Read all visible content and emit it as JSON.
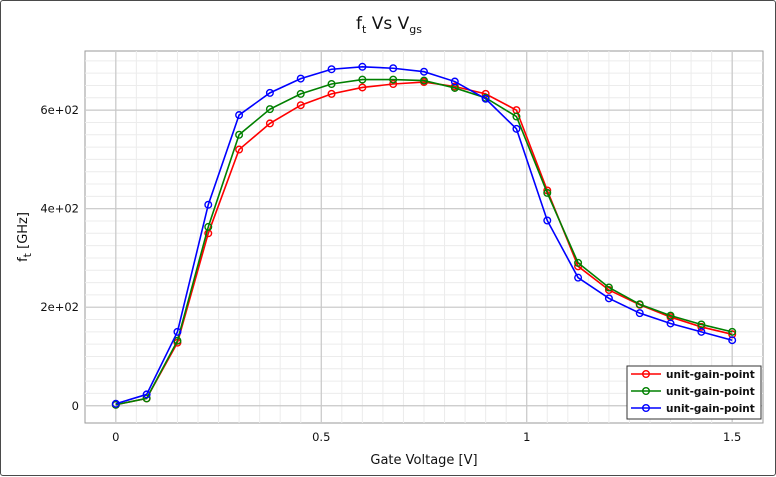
{
  "chart_data": {
    "type": "line",
    "title": {
      "main": "f",
      "main_sub": "t",
      "mid": " Vs V",
      "end_sub": "gs"
    },
    "xlabel": "Gate Voltage [V]",
    "ylabel": {
      "main": "f",
      "sub": "t",
      "rest": " [GHz]"
    },
    "xlim": [
      -0.075,
      1.575
    ],
    "ylim": [
      -35,
      720
    ],
    "xticks": [
      0,
      0.5,
      1,
      1.5
    ],
    "xtick_labels": [
      "0",
      "0.5",
      "1",
      "1.5"
    ],
    "yticks": [
      0,
      200,
      400,
      600
    ],
    "ytick_labels": [
      "0",
      "2e+02",
      "4e+02",
      "6e+02"
    ],
    "grid": true,
    "legend_position": "bottom-right",
    "x": [
      0,
      0.075,
      0.15,
      0.225,
      0.3,
      0.375,
      0.45,
      0.525,
      0.6,
      0.675,
      0.75,
      0.825,
      0.9,
      0.975,
      1.05,
      1.125,
      1.2,
      1.275,
      1.35,
      1.425,
      1.5
    ],
    "series": [
      {
        "name": "unit-gain-point",
        "color": "#ff0000",
        "values": [
          2,
          15,
          128,
          350,
          520,
          573,
          610,
          633,
          646,
          653,
          657,
          648,
          633,
          600,
          437,
          283,
          235,
          205,
          180,
          160,
          145
        ]
      },
      {
        "name": "unit-gain-point",
        "color": "#008000",
        "values": [
          2,
          15,
          132,
          363,
          550,
          602,
          633,
          653,
          662,
          662,
          660,
          645,
          625,
          587,
          432,
          290,
          240,
          206,
          183,
          165,
          150
        ]
      },
      {
        "name": "unit-gain-point",
        "color": "#0000ff",
        "values": [
          4,
          23,
          150,
          408,
          590,
          635,
          664,
          683,
          688,
          685,
          678,
          658,
          623,
          562,
          376,
          260,
          218,
          188,
          167,
          150,
          133
        ]
      }
    ]
  }
}
